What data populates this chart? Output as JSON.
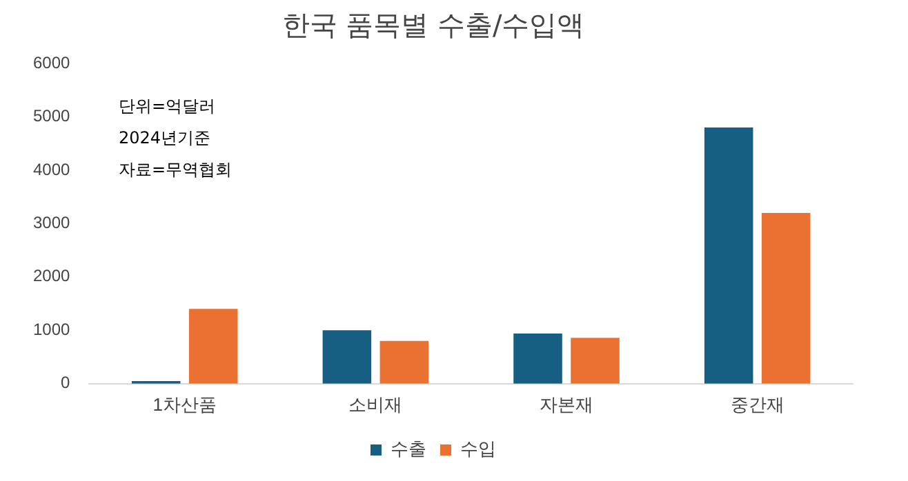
{
  "chart_data": {
    "type": "bar",
    "title": "한국 품목별 수출/수입액",
    "categories": [
      "1차산품",
      "소비재",
      "자본재",
      "중간재"
    ],
    "series": [
      {
        "name": "수출",
        "color": "#175e83",
        "values": [
          50,
          1000,
          940,
          4800
        ]
      },
      {
        "name": "수입",
        "color": "#ea7131",
        "values": [
          1400,
          800,
          860,
          3200
        ]
      }
    ],
    "ylim": [
      0,
      6000
    ],
    "yticks": [
      0,
      1000,
      2000,
      3000,
      4000,
      5000,
      6000
    ],
    "grid": false,
    "legend": "bottom",
    "annotations": [
      "단위=억달러",
      "2024년기준",
      "자료=무역협회"
    ]
  }
}
